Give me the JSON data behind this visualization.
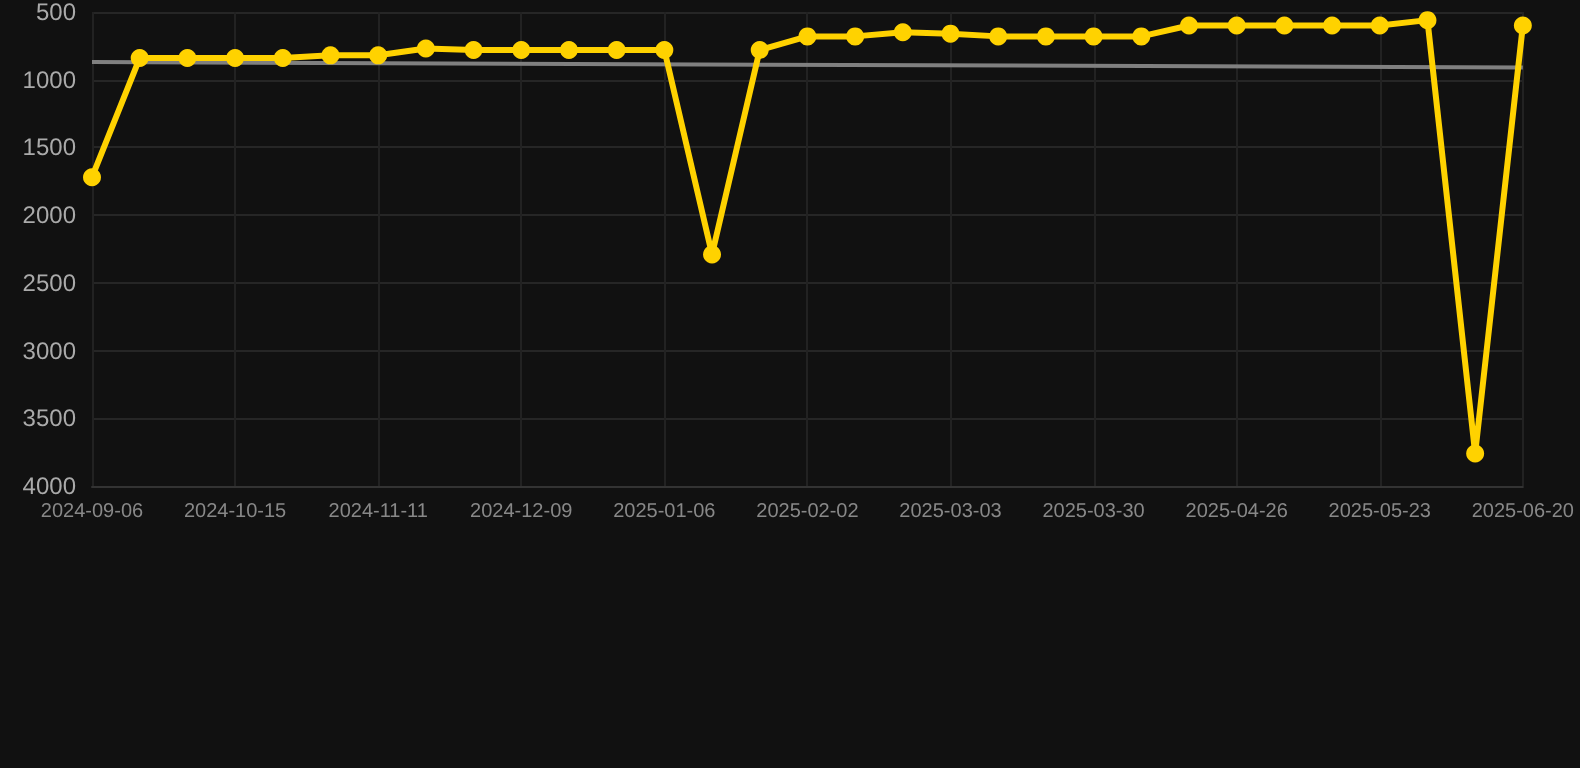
{
  "chart_data": {
    "type": "line",
    "categories": [
      "2024-09-06",
      null,
      null,
      "2024-10-15",
      null,
      null,
      "2024-11-11",
      null,
      null,
      "2024-12-09",
      null,
      null,
      "2025-01-06",
      null,
      null,
      "2025-02-02",
      null,
      null,
      "2025-03-03",
      null,
      null,
      "2025-03-30",
      null,
      null,
      "2025-04-26",
      null,
      null,
      "2025-05-23",
      null,
      null,
      "2025-06-20"
    ],
    "series": [
      {
        "color": "#ffd200",
        "marker": "circle",
        "values": [
          1720,
          840,
          840,
          840,
          840,
          820,
          820,
          770,
          780,
          780,
          780,
          780,
          780,
          2290,
          780,
          680,
          680,
          650,
          660,
          680,
          680,
          680,
          680,
          600,
          600,
          600,
          600,
          600,
          560,
          3760,
          600
        ]
      },
      {
        "color": "#808080",
        "marker": "none",
        "values": [
          870,
          null,
          null,
          null,
          null,
          null,
          null,
          null,
          null,
          null,
          null,
          null,
          null,
          null,
          null,
          null,
          null,
          null,
          null,
          null,
          null,
          null,
          null,
          null,
          null,
          null,
          null,
          null,
          null,
          null,
          910
        ]
      }
    ],
    "ylim": [
      4000,
      500
    ],
    "yticks": [
      500,
      1000,
      1500,
      2000,
      2500,
      3000,
      3500,
      4000
    ],
    "grid": true
  }
}
